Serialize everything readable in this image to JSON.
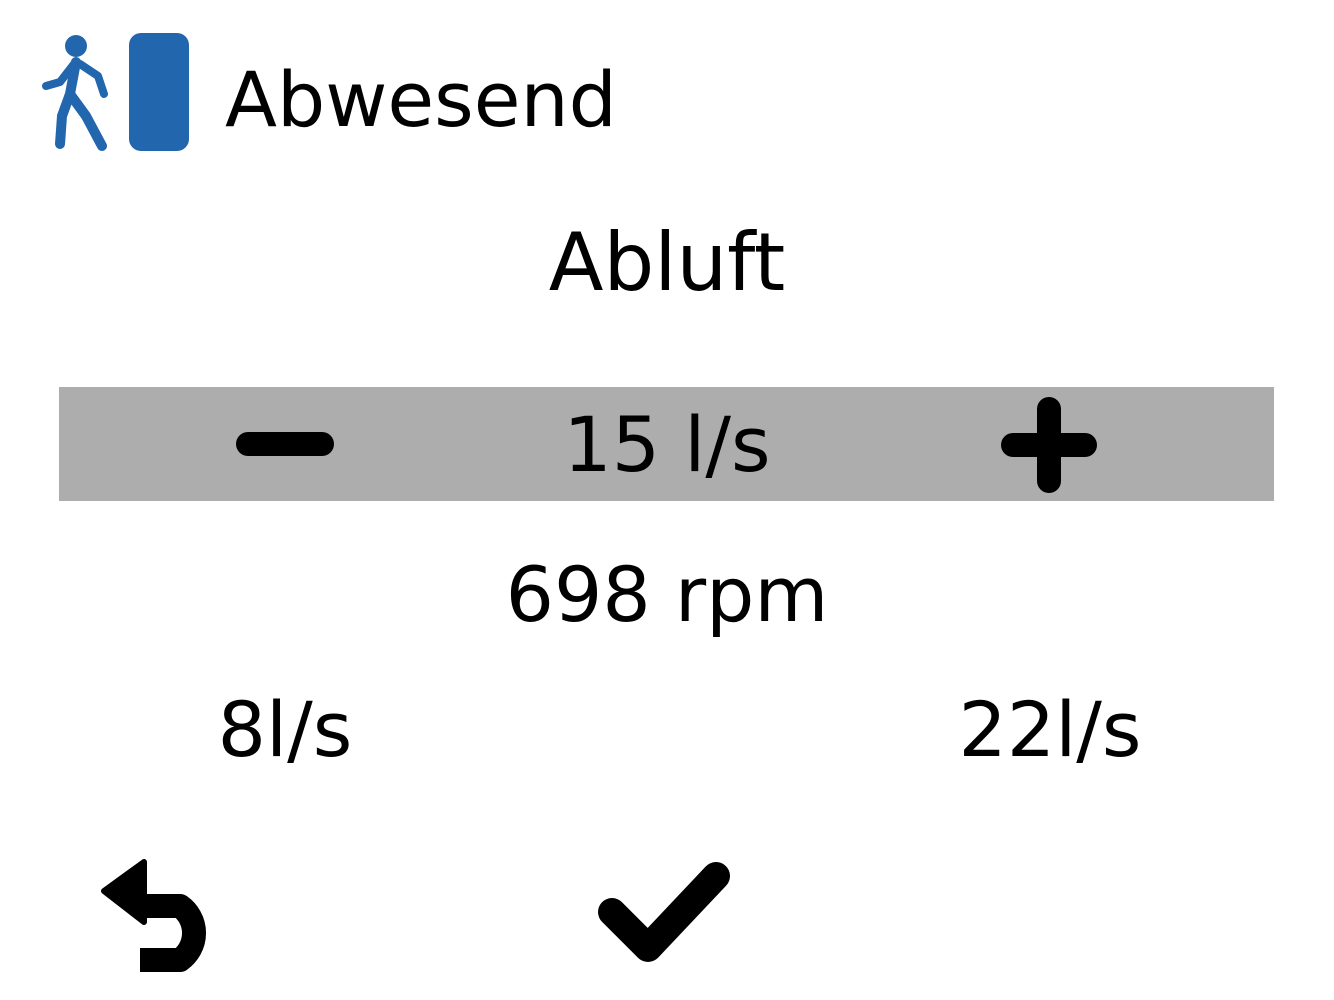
{
  "header": {
    "status": "Abwesend",
    "status_icon": "walking-person-door-icon",
    "accent": "#2266ae"
  },
  "title": "Abluft",
  "setpoint": {
    "value": "15 l/s",
    "minus_icon": "minus-icon",
    "plus_icon": "plus-icon"
  },
  "speed": "698 rpm",
  "range": {
    "min": "8l/s",
    "max": "22l/s"
  },
  "footer": {
    "back_icon": "back-arrow-icon",
    "confirm_icon": "checkmark-icon"
  }
}
